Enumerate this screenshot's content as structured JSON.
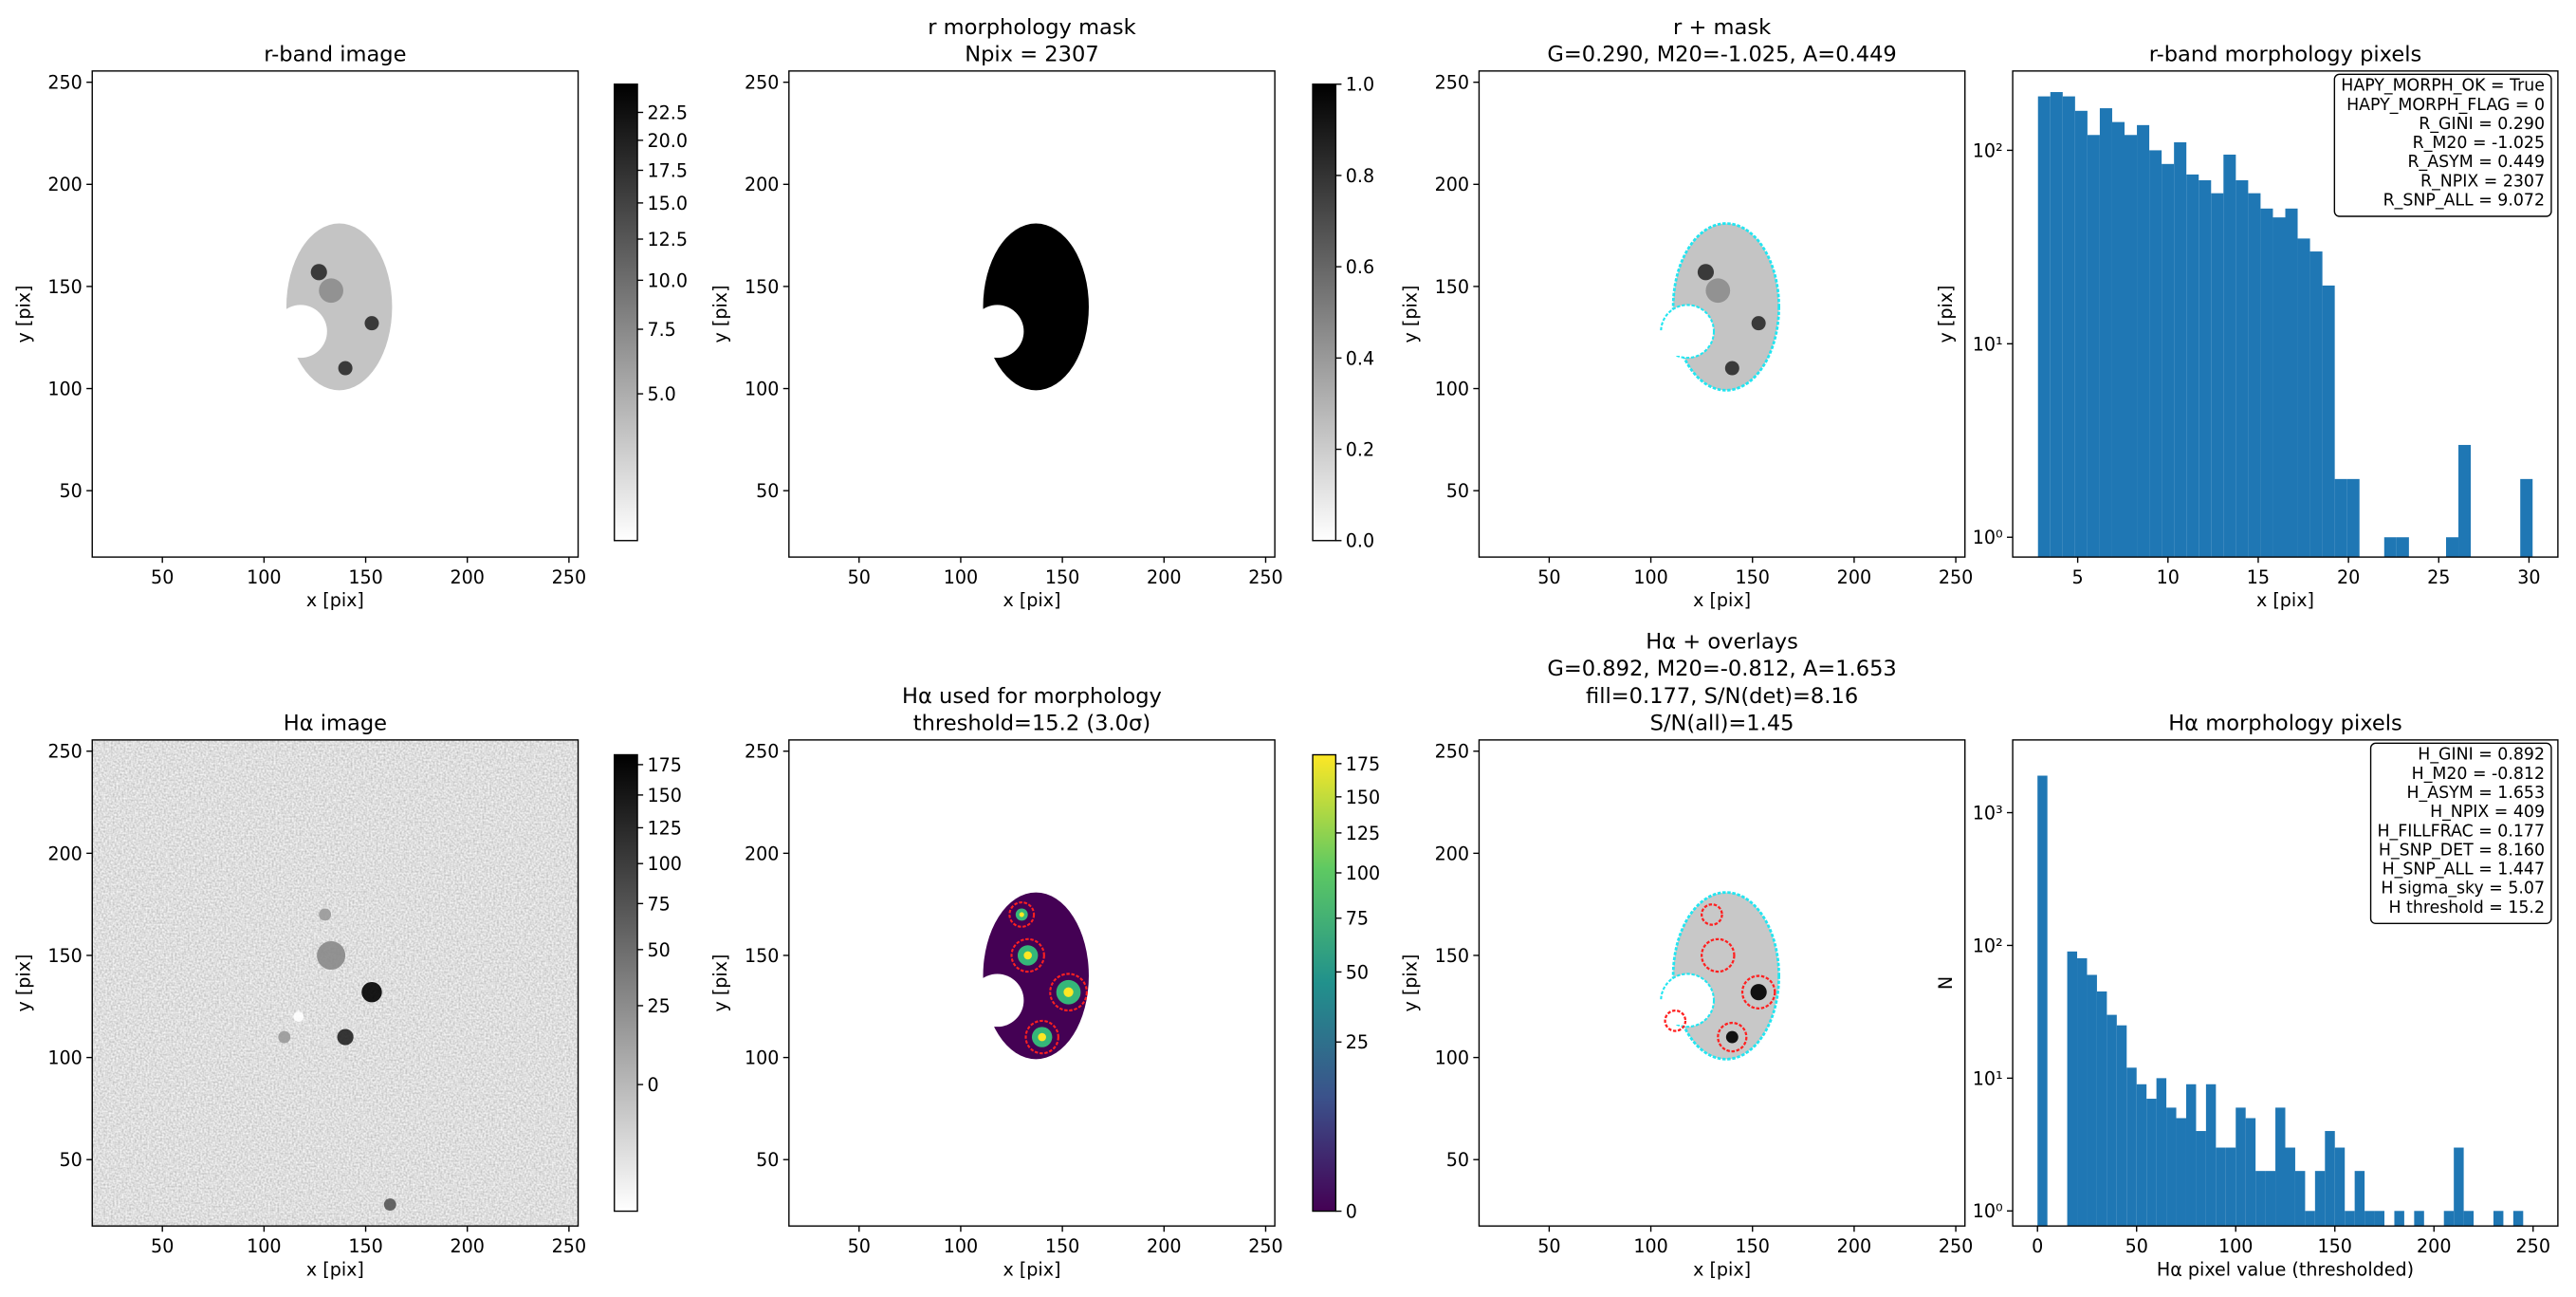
{
  "chart_data": [
    {
      "type": "image",
      "title": "r-band image",
      "xlabel": "x [pix]",
      "ylabel": "y [pix]",
      "xlim": [
        15.5,
        254.5
      ],
      "ylim": [
        17.5,
        255.5
      ],
      "xticks": [
        50,
        100,
        150,
        200,
        250
      ],
      "yticks": [
        50,
        100,
        150,
        200,
        250
      ],
      "cmap": "gray_r",
      "colorbar": {
        "clim": [
          2.67,
          25.2
        ],
        "scale": "sqrt",
        "ticks": [
          {
            "value": 5,
            "label": "5.0"
          },
          {
            "value": 7.5,
            "label": "7.5"
          },
          {
            "value": 10,
            "label": "10.0"
          },
          {
            "value": 12.5,
            "label": "12.5"
          },
          {
            "value": 15,
            "label": "15.0"
          },
          {
            "value": 17.5,
            "label": "17.5"
          },
          {
            "value": 20,
            "label": "20.0"
          },
          {
            "value": 22.5,
            "label": "22.5"
          }
        ]
      }
    },
    {
      "type": "image",
      "title": [
        "r morphology mask",
        "Npix = 2307"
      ],
      "xlabel": "x [pix]",
      "ylabel": "y [pix]",
      "xlim": [
        15.5,
        254.5
      ],
      "ylim": [
        17.5,
        255.5
      ],
      "xticks": [
        50,
        100,
        150,
        200,
        250
      ],
      "yticks": [
        50,
        100,
        150,
        200,
        250
      ],
      "cmap": "gray_r",
      "colorbar": {
        "clim": [
          0,
          1
        ],
        "scale": "linear",
        "ticks": [
          {
            "value": 0,
            "label": "0.0"
          },
          {
            "value": 0.2,
            "label": "0.2"
          },
          {
            "value": 0.4,
            "label": "0.4"
          },
          {
            "value": 0.6,
            "label": "0.6"
          },
          {
            "value": 0.8,
            "label": "0.8"
          },
          {
            "value": 1,
            "label": "1.0"
          }
        ]
      }
    },
    {
      "type": "image",
      "title": [
        "r + mask",
        "G=0.290, M20=-1.025, A=0.449"
      ],
      "xlabel": "x [pix]",
      "ylabel": "y [pix]",
      "xlim": [
        15.5,
        254.5
      ],
      "ylim": [
        17.5,
        255.5
      ],
      "xticks": [
        50,
        100,
        150,
        200,
        250
      ],
      "yticks": [
        50,
        100,
        150,
        200,
        250
      ],
      "cmap": "gray_r"
    },
    {
      "type": "histogram",
      "title": "r-band morphology pixels",
      "xlabel": "x [pix]",
      "ylabel": "y [pix]",
      "color": "#1f77b4",
      "log_y": true,
      "bins": [
        2.8,
        3.485,
        4.17,
        4.855,
        5.54,
        6.225,
        6.91,
        7.595,
        8.28,
        8.965,
        9.65,
        10.335,
        11.02,
        11.705,
        12.39,
        13.075,
        13.76,
        14.445,
        15.13,
        15.815,
        16.5,
        17.185,
        17.87,
        18.555,
        19.24,
        19.925,
        20.61,
        21.295,
        21.98,
        22.665,
        23.35,
        24.035,
        24.72,
        25.405,
        26.09,
        26.775,
        27.46,
        28.145,
        28.83,
        29.515,
        30.2
      ],
      "values": [
        190,
        200,
        190,
        160,
        120,
        165,
        140,
        120,
        135,
        100,
        85,
        110,
        75,
        70,
        60,
        95,
        70,
        60,
        50,
        45,
        50,
        35,
        30,
        20,
        2,
        2,
        0,
        0,
        1,
        1,
        0,
        0,
        0,
        1,
        3,
        0,
        0,
        0,
        0,
        2
      ],
      "xlim": [
        1.4,
        31.6
      ],
      "ylim": [
        0.79,
        257
      ],
      "xticks": [
        5,
        10,
        15,
        20,
        25,
        30
      ],
      "yticks": [
        {
          "value": 1,
          "label": "10⁰"
        },
        {
          "value": 10,
          "label": "10¹"
        },
        {
          "value": 100,
          "label": "10²"
        }
      ],
      "annotation": [
        "HAPY_MORPH_OK = True",
        "HAPY_MORPH_FLAG = 0",
        "R_GINI = 0.290",
        "R_M20 = -1.025",
        "R_ASYM = 0.449",
        "R_NPIX = 2307",
        "R_SNP_ALL = 9.072"
      ]
    },
    {
      "type": "image",
      "title": "Hα image",
      "xlabel": "x [pix]",
      "ylabel": "y [pix]",
      "xlim": [
        15.5,
        254.5
      ],
      "ylim": [
        17.5,
        255.5
      ],
      "xticks": [
        50,
        100,
        150,
        200,
        250
      ],
      "yticks": [
        50,
        100,
        150,
        200,
        250
      ],
      "cmap": "gray_r",
      "colorbar": {
        "clim": [
          -15.3,
          183.5
        ],
        "scale": "sqrt",
        "ticks": [
          0,
          25,
          50,
          75,
          100,
          125,
          150,
          175
        ]
      }
    },
    {
      "type": "image",
      "title": [
        "Hα used for morphology",
        "threshold=15.2 (3.0σ)"
      ],
      "xlabel": "x [pix]",
      "ylabel": "y [pix]",
      "xlim": [
        15.5,
        254.5
      ],
      "ylim": [
        17.5,
        255.5
      ],
      "xticks": [
        50,
        100,
        150,
        200,
        250
      ],
      "yticks": [
        50,
        100,
        150,
        200,
        250
      ],
      "cmap": "viridis",
      "colorbar": {
        "clim": [
          0,
          182
        ],
        "scale": "sqrt",
        "ticks": [
          0,
          25,
          50,
          75,
          100,
          125,
          150,
          175
        ]
      }
    },
    {
      "type": "image",
      "title": [
        "Hα + overlays",
        "G=0.892, M20=-0.812, A=1.653",
        "fill=0.177, S/N(det)=8.16",
        "S/N(all)=1.45"
      ],
      "xlabel": "x [pix]",
      "ylabel": "y [pix]",
      "xlim": [
        15.5,
        254.5
      ],
      "ylim": [
        17.5,
        255.5
      ],
      "xticks": [
        50,
        100,
        150,
        200,
        250
      ],
      "yticks": [
        50,
        100,
        150,
        200,
        250
      ],
      "cmap": "gray_r"
    },
    {
      "type": "histogram",
      "title": "Hα morphology pixels",
      "xlabel": "Hα pixel value (thresholded)",
      "ylabel": "N",
      "color": "#1f77b4",
      "log_y": true,
      "bins": [
        0,
        5,
        10,
        15,
        20,
        25,
        30,
        35,
        40,
        45,
        50,
        55,
        60,
        65,
        70,
        75,
        80,
        85,
        90,
        95,
        100,
        105,
        110,
        115,
        120,
        125,
        130,
        135,
        140,
        145,
        150,
        155,
        160,
        165,
        170,
        175,
        180,
        185,
        190,
        195,
        200,
        205,
        210,
        215,
        220,
        225,
        230,
        235,
        240,
        245,
        250
      ],
      "values": [
        1900,
        0,
        0,
        90,
        80,
        60,
        45,
        30,
        25,
        12,
        9,
        7,
        10,
        6,
        5,
        9,
        4,
        9,
        3,
        3,
        6,
        5,
        2,
        2,
        6,
        3,
        2,
        1,
        2,
        4,
        3,
        1,
        2,
        1,
        1,
        0,
        1,
        0,
        1,
        0,
        0,
        1,
        3,
        1,
        0,
        0,
        1,
        0,
        1,
        0
      ],
      "xlim": [
        -12.5,
        262.5
      ],
      "ylim": [
        0.77,
        3530
      ],
      "xticks": [
        0,
        50,
        100,
        150,
        200,
        250
      ],
      "yticks": [
        {
          "value": 1,
          "label": "10⁰"
        },
        {
          "value": 10,
          "label": "10¹"
        },
        {
          "value": 100,
          "label": "10²"
        },
        {
          "value": 1000,
          "label": "10³"
        }
      ],
      "annotation": [
        "H_GINI = 0.892",
        "H_M20 = -0.812",
        "H_ASYM = 1.653",
        "H_NPIX = 409",
        "H_FILLFRAC = 0.177",
        "H_SNP_DET = 8.160",
        "H_SNP_ALL = 1.447",
        "H sigma_sky = 5.07",
        "H threshold = 15.2"
      ]
    }
  ]
}
